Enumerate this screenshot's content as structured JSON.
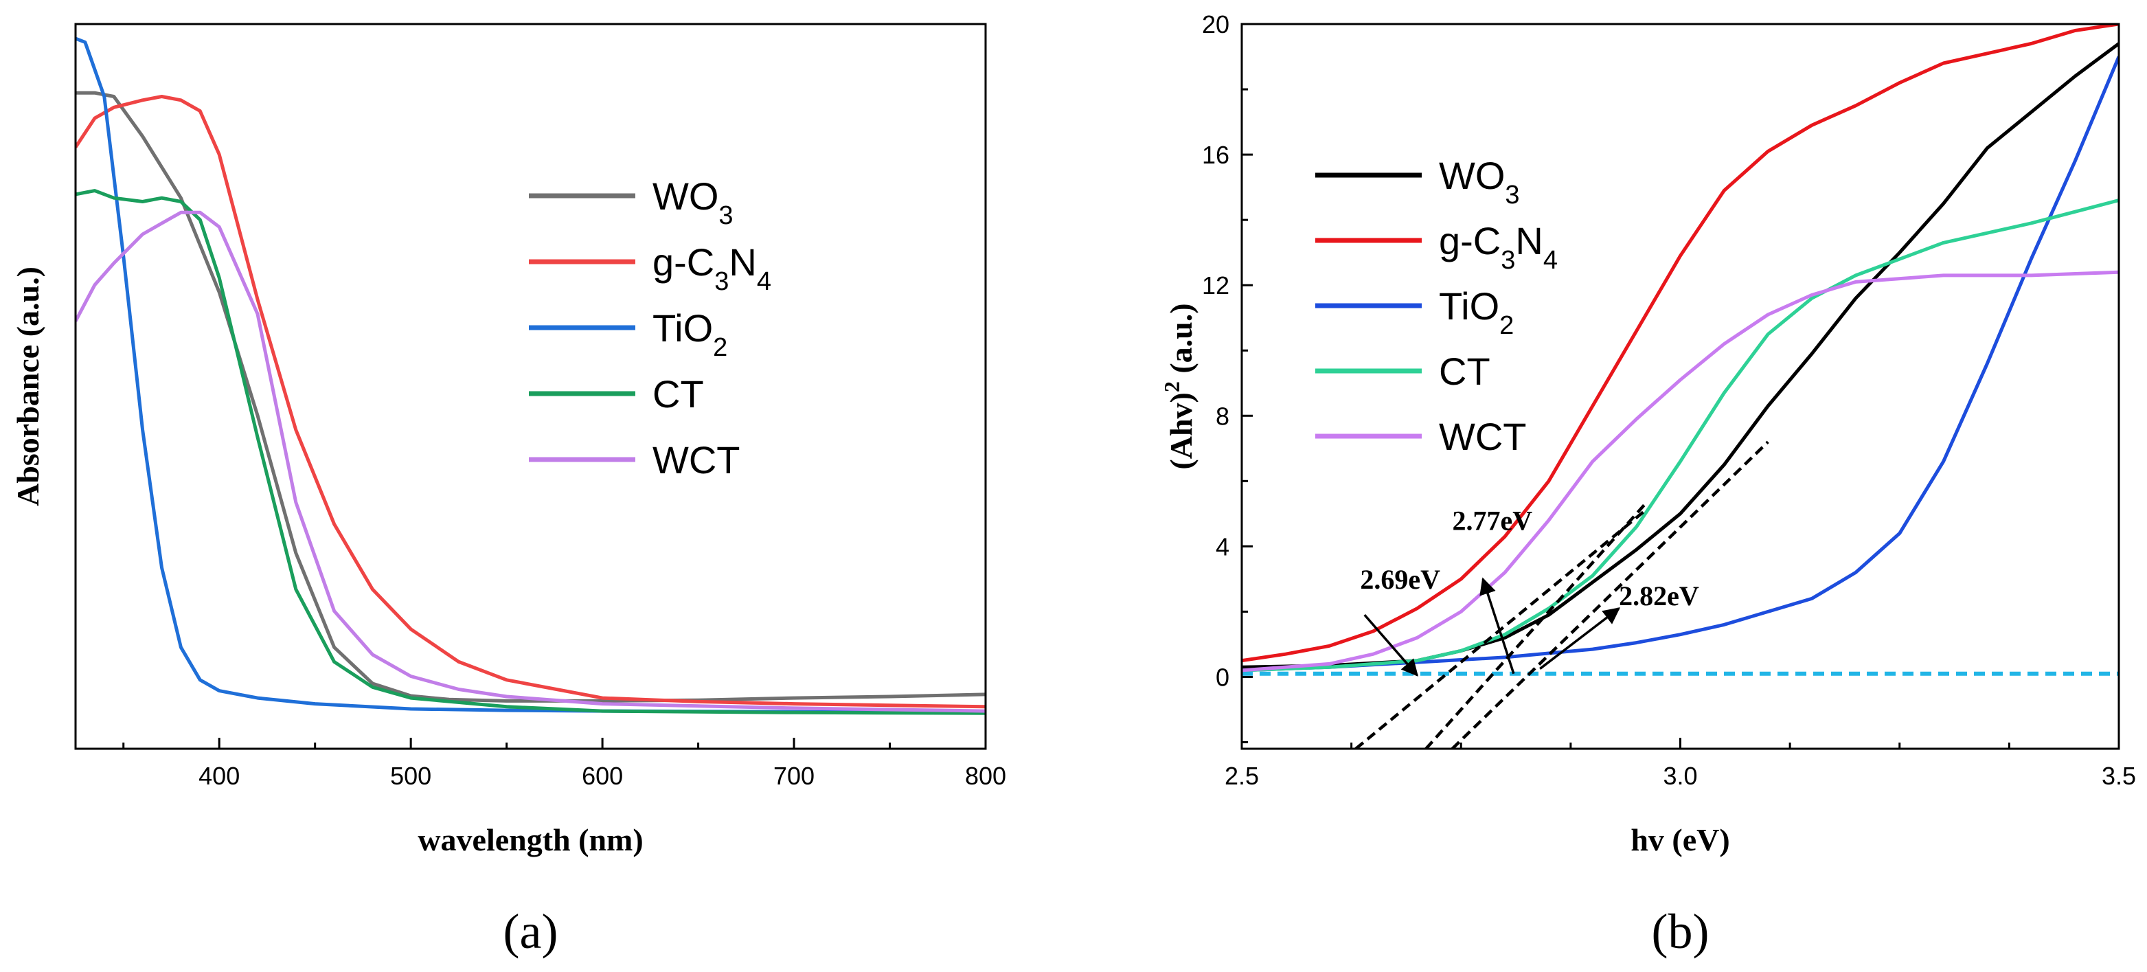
{
  "chart_data": [
    {
      "panel": "a",
      "panel_label": "(a)",
      "type": "line",
      "xlabel": "wavelength (nm)",
      "ylabel": "Absorbance (a.u.)",
      "xlim": [
        325,
        800
      ],
      "ylim": [
        0,
        1
      ],
      "xticks": [
        400,
        500,
        600,
        700,
        800
      ],
      "yticks": [],
      "legend_position": "center-right",
      "series": [
        {
          "name": "WO3",
          "label_main": "WO",
          "label_sub": "3",
          "color": "#707070",
          "x": [
            325,
            335,
            345,
            360,
            380,
            400,
            420,
            440,
            460,
            480,
            500,
            520,
            550,
            600,
            650,
            700,
            750,
            800
          ],
          "y": [
            0.905,
            0.905,
            0.9,
            0.845,
            0.76,
            0.63,
            0.46,
            0.27,
            0.14,
            0.09,
            0.073,
            0.068,
            0.066,
            0.066,
            0.067,
            0.07,
            0.072,
            0.075
          ]
        },
        {
          "name": "g-C3N4",
          "label_parts": [
            "g-C",
            "3",
            "N",
            "4"
          ],
          "color": "#ef4444",
          "x": [
            325,
            335,
            345,
            360,
            370,
            380,
            390,
            400,
            420,
            440,
            460,
            480,
            500,
            525,
            550,
            600,
            650,
            700,
            750,
            800
          ],
          "y": [
            0.83,
            0.87,
            0.885,
            0.895,
            0.9,
            0.895,
            0.88,
            0.82,
            0.62,
            0.44,
            0.31,
            0.22,
            0.165,
            0.12,
            0.095,
            0.07,
            0.065,
            0.062,
            0.06,
            0.058
          ]
        },
        {
          "name": "TiO2",
          "label_main": "TiO",
          "label_sub": "2",
          "color": "#1f6fd8",
          "x": [
            325,
            330,
            340,
            350,
            360,
            370,
            380,
            390,
            400,
            420,
            450,
            500,
            550,
            600,
            700,
            800
          ],
          "y": [
            0.98,
            0.975,
            0.9,
            0.68,
            0.44,
            0.25,
            0.14,
            0.095,
            0.08,
            0.07,
            0.062,
            0.055,
            0.053,
            0.052,
            0.051,
            0.05
          ]
        },
        {
          "name": "CT",
          "label_main": "CT",
          "color": "#1a9e5c",
          "x": [
            325,
            335,
            345,
            360,
            370,
            380,
            390,
            400,
            420,
            440,
            460,
            480,
            500,
            550,
            600,
            700,
            800
          ],
          "y": [
            0.765,
            0.77,
            0.76,
            0.755,
            0.76,
            0.755,
            0.73,
            0.65,
            0.43,
            0.22,
            0.12,
            0.085,
            0.07,
            0.058,
            0.052,
            0.05,
            0.049
          ]
        },
        {
          "name": "WCT",
          "label_main": "WCT",
          "color": "#c17ee8",
          "x": [
            325,
            335,
            345,
            360,
            370,
            380,
            390,
            400,
            420,
            440,
            460,
            480,
            500,
            525,
            550,
            600,
            700,
            800
          ],
          "y": [
            0.59,
            0.64,
            0.67,
            0.71,
            0.725,
            0.74,
            0.74,
            0.72,
            0.6,
            0.34,
            0.19,
            0.13,
            0.1,
            0.082,
            0.072,
            0.062,
            0.056,
            0.052
          ]
        }
      ]
    },
    {
      "panel": "b",
      "panel_label": "(b)",
      "type": "line",
      "xlabel": "hv (eV)",
      "ylabel_main": "(Ahv)",
      "ylabel_sup": "2",
      "ylabel_unit": " (a.u.)",
      "xlim": [
        2.5,
        3.5
      ],
      "ylim": [
        -2.2,
        20
      ],
      "xticks": [
        2.5,
        3.0,
        3.5
      ],
      "xtick_labels": [
        "2.5",
        "3.0",
        "3.5"
      ],
      "yticks": [
        0,
        4,
        8,
        12,
        16,
        20
      ],
      "legend_position": "upper-left",
      "baseline": {
        "y": 0.1,
        "color": "#22b5e6"
      },
      "series": [
        {
          "name": "WO3",
          "label_main": "WO",
          "label_sub": "3",
          "color": "#000000",
          "x": [
            2.5,
            2.6,
            2.7,
            2.75,
            2.8,
            2.85,
            2.9,
            2.95,
            3.0,
            3.05,
            3.1,
            3.15,
            3.2,
            3.25,
            3.3,
            3.35,
            3.4,
            3.45,
            3.5
          ],
          "y": [
            0.3,
            0.35,
            0.5,
            0.8,
            1.2,
            1.9,
            2.9,
            3.9,
            5.0,
            6.5,
            8.3,
            9.9,
            11.6,
            13.0,
            14.5,
            16.2,
            17.3,
            18.4,
            19.4
          ]
        },
        {
          "name": "g-C3N4",
          "label_parts": [
            "g-C",
            "3",
            "N",
            "4"
          ],
          "color": "#e8161b",
          "x": [
            2.5,
            2.55,
            2.6,
            2.65,
            2.7,
            2.75,
            2.8,
            2.85,
            2.9,
            2.95,
            3.0,
            3.05,
            3.1,
            3.15,
            3.2,
            3.25,
            3.3,
            3.35,
            3.4,
            3.45,
            3.5
          ],
          "y": [
            0.5,
            0.7,
            0.95,
            1.4,
            2.1,
            3.0,
            4.3,
            6.0,
            8.3,
            10.6,
            12.9,
            14.9,
            16.1,
            16.9,
            17.5,
            18.2,
            18.8,
            19.1,
            19.4,
            19.8,
            20.0
          ]
        },
        {
          "name": "TiO2",
          "label_main": "TiO",
          "label_sub": "2",
          "color": "#1d4ddd",
          "x": [
            2.5,
            2.6,
            2.7,
            2.8,
            2.9,
            2.95,
            3.0,
            3.05,
            3.1,
            3.15,
            3.2,
            3.25,
            3.3,
            3.35,
            3.4,
            3.45,
            3.5
          ],
          "y": [
            0.2,
            0.3,
            0.45,
            0.6,
            0.85,
            1.05,
            1.3,
            1.6,
            2.0,
            2.4,
            3.2,
            4.4,
            6.6,
            9.6,
            12.8,
            15.8,
            19.0
          ]
        },
        {
          "name": "CT",
          "label_main": "CT",
          "color": "#2ed196",
          "x": [
            2.5,
            2.6,
            2.7,
            2.75,
            2.8,
            2.85,
            2.9,
            2.95,
            3.0,
            3.05,
            3.1,
            3.15,
            3.2,
            3.3,
            3.4,
            3.5
          ],
          "y": [
            0.2,
            0.3,
            0.5,
            0.8,
            1.3,
            2.1,
            3.1,
            4.6,
            6.6,
            8.7,
            10.5,
            11.6,
            12.3,
            13.3,
            13.9,
            14.6
          ]
        },
        {
          "name": "WCT",
          "label_main": "WCT",
          "color": "#c87cf0",
          "x": [
            2.5,
            2.6,
            2.65,
            2.7,
            2.75,
            2.8,
            2.85,
            2.9,
            2.95,
            3.0,
            3.05,
            3.1,
            3.15,
            3.2,
            3.3,
            3.4,
            3.5
          ],
          "y": [
            0.2,
            0.4,
            0.7,
            1.2,
            2.0,
            3.2,
            4.8,
            6.6,
            7.9,
            9.1,
            10.2,
            11.1,
            11.7,
            12.1,
            12.3,
            12.3,
            12.4
          ]
        }
      ],
      "tangent_lines": [
        {
          "x": [
            2.63,
            2.96
          ],
          "y": [
            -2.2,
            5.1
          ]
        },
        {
          "x": [
            2.71,
            2.96
          ],
          "y": [
            -2.2,
            5.3
          ]
        },
        {
          "x": [
            2.74,
            3.1
          ],
          "y": [
            -2.2,
            7.2
          ]
        }
      ],
      "annotations": [
        {
          "text": "2.69eV",
          "text_x": 2.635,
          "text_y": 2.7,
          "arrow_from": [
            2.64,
            1.9
          ],
          "arrow_to": [
            2.7,
            0.05
          ]
        },
        {
          "text": "2.77eV",
          "text_x": 2.74,
          "text_y": 4.5,
          "arrow_from": [
            2.81,
            0.1
          ],
          "arrow_to": [
            2.775,
            3.0
          ]
        },
        {
          "text": "2.82eV",
          "text_x": 2.93,
          "text_y": 2.2,
          "arrow_from": [
            2.84,
            0.25
          ],
          "arrow_to": [
            2.93,
            2.1
          ]
        }
      ]
    }
  ]
}
